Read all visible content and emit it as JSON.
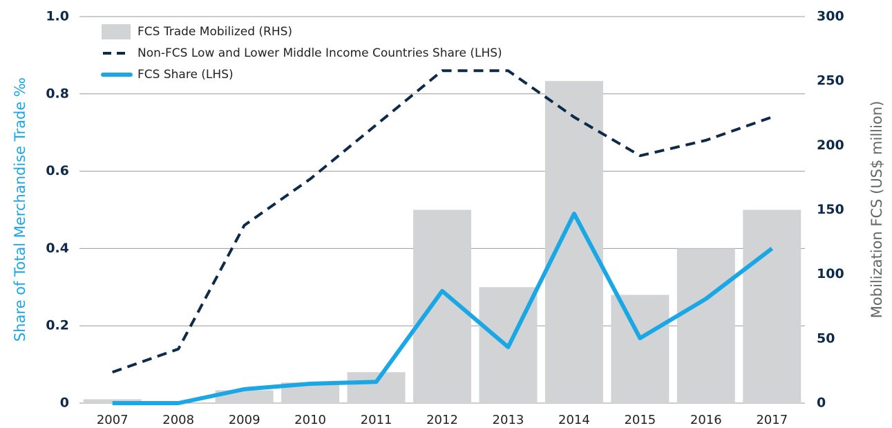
{
  "chart_data": {
    "type": "bar-line",
    "categories": [
      "2007",
      "2008",
      "2009",
      "2010",
      "2011",
      "2012",
      "2013",
      "2014",
      "2015",
      "2016",
      "2017"
    ],
    "ylabel": "Share of Total Merchandise Trade ‰",
    "y2label": "Mobilization FCS (US$ million)",
    "ylim": [
      0,
      1
    ],
    "yticks": [
      0,
      0.2,
      0.4,
      0.6,
      0.8,
      {
        "value": 1,
        "label": "1.0"
      }
    ],
    "y2lim": [
      0,
      300
    ],
    "y2ticks": [
      0,
      50,
      100,
      150,
      200,
      250,
      300
    ],
    "grid": true,
    "legend": "top-left",
    "series": [
      {
        "name": "FCS Trade Mobilized (RHS)",
        "type": "bar",
        "axis": "y2",
        "color": "#d1d3d4",
        "values": [
          3,
          0,
          10,
          16,
          24,
          150,
          90,
          250,
          84,
          120,
          150
        ]
      },
      {
        "name": "Non-FCS Low and Lower Middle Income Countries Share (LHS)",
        "type": "dashed-line",
        "color": "#0d2a4a",
        "values": [
          0.08,
          0.14,
          0.46,
          0.58,
          0.72,
          0.86,
          0.86,
          0.74,
          0.64,
          0.68,
          0.74
        ]
      },
      {
        "name": "FCS Share (LHS)",
        "type": "line",
        "color": "#1aa7e5",
        "values": [
          0,
          0,
          0.036,
          0.05,
          0.055,
          0.29,
          0.145,
          0.49,
          0.168,
          0.27,
          0.4
        ]
      }
    ]
  }
}
